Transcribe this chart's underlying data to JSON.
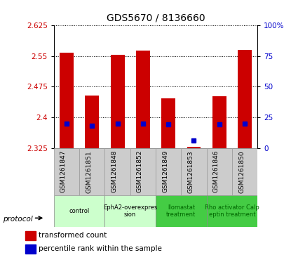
{
  "title": "GDS5670 / 8136660",
  "samples": [
    "GSM1261847",
    "GSM1261851",
    "GSM1261848",
    "GSM1261852",
    "GSM1261849",
    "GSM1261853",
    "GSM1261846",
    "GSM1261850"
  ],
  "bar_bottoms": [
    2.325,
    2.325,
    2.325,
    2.325,
    2.325,
    2.325,
    2.325,
    2.325
  ],
  "bar_tops": [
    2.558,
    2.453,
    2.554,
    2.563,
    2.447,
    2.327,
    2.452,
    2.565
  ],
  "percentile_values": [
    20,
    18,
    20,
    20,
    19,
    6,
    19,
    20
  ],
  "ylim_left": [
    2.325,
    2.625
  ],
  "ylim_right": [
    0,
    100
  ],
  "yticks_left": [
    2.325,
    2.4,
    2.475,
    2.55,
    2.625
  ],
  "yticks_right": [
    0,
    25,
    50,
    75,
    100
  ],
  "ytick_labels_left": [
    "2.325",
    "2.4",
    "2.475",
    "2.55",
    "2.625"
  ],
  "ytick_labels_right": [
    "0",
    "25",
    "50",
    "75",
    "100%"
  ],
  "bar_color": "#cc0000",
  "dot_color": "#0000cc",
  "groups": [
    {
      "label": "control",
      "indices": [
        0,
        1
      ],
      "color": "#ccffcc",
      "text_color": "#000000"
    },
    {
      "label": "EphA2-overexpres\nsion",
      "indices": [
        2,
        3
      ],
      "color": "#ccffcc",
      "text_color": "#000000"
    },
    {
      "label": "llomastat\ntreatment",
      "indices": [
        4,
        5
      ],
      "color": "#44cc44",
      "text_color": "#006600"
    },
    {
      "label": "Rho activator Calp\neptin treatment",
      "indices": [
        6,
        7
      ],
      "color": "#44cc44",
      "text_color": "#006600"
    }
  ],
  "legend_bar_label": "transformed count",
  "legend_dot_label": "percentile rank within the sample",
  "protocol_label": "protocol",
  "background_color": "#ffffff",
  "sample_box_color": "#cccccc",
  "sample_box_edge_color": "#999999"
}
